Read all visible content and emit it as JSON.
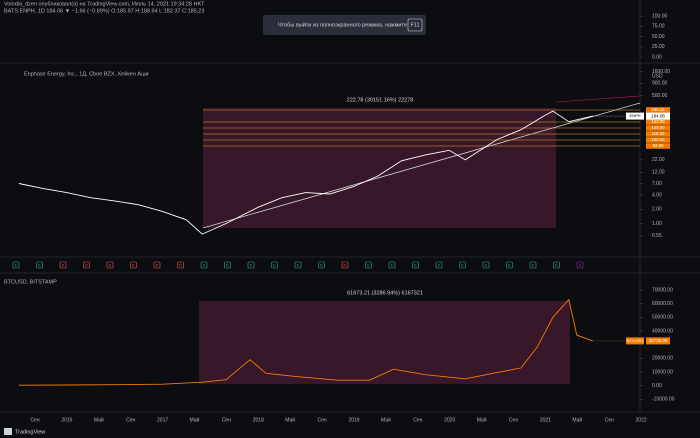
{
  "header": {
    "publisher": "Volodia_dzen опубликовал(а) на TradingView.com, Июль 14, 2021 19:34:28 HKT",
    "symbol_line": "BATS:ENPH, 1D  184.06  ▼ −1.66 (−0.89%)  O:185.97 H:188.94 L:182.37 C:185.23"
  },
  "toast": {
    "text": "Чтобы выйти из полноэкранного режима, нажмите",
    "key": "F11"
  },
  "top_pane": {
    "ylim": [
      -12,
      120
    ],
    "yticks": [
      {
        "value": 100,
        "label": "100.00"
      },
      {
        "value": 75,
        "label": "75.00"
      },
      {
        "value": 50,
        "label": "50.00"
      },
      {
        "value": 25,
        "label": "25.00"
      },
      {
        "value": 0,
        "label": "0.00"
      }
    ]
  },
  "main": {
    "title": "Enphase Energy, Inc., 1Д, Cboe BZX, Хейкен Аши",
    "unit": "USD",
    "log": true,
    "color": "#ffffff",
    "ylim": [
      0.45,
      1900
    ],
    "yticks": [
      {
        "value": 1600,
        "label": "1600.00"
      },
      {
        "value": 900,
        "label": "900.00"
      },
      {
        "value": 500,
        "label": "500.00"
      },
      {
        "value": 22,
        "label": "22.00"
      },
      {
        "value": 12,
        "label": "12.00"
      },
      {
        "value": 7,
        "label": "7.00"
      },
      {
        "value": 4,
        "label": "4.00"
      },
      {
        "value": 2,
        "label": "2.00"
      },
      {
        "value": 1,
        "label": "1.00"
      },
      {
        "value": 0.55,
        "label": "0.55"
      }
    ],
    "x": [
      "2015-07",
      "2015-10",
      "2016-01",
      "2016-04",
      "2016-07",
      "2016-10",
      "2017-01",
      "2017-04",
      "2017-06",
      "2017-09",
      "2018-01",
      "2018-04",
      "2018-07",
      "2018-10",
      "2019-01",
      "2019-04",
      "2019-07",
      "2019-10",
      "2020-01",
      "2020-03",
      "2020-07",
      "2020-10",
      "2021-01",
      "2021-02",
      "2021-04",
      "2021-07"
    ],
    "values": [
      7,
      5.5,
      4.5,
      3.5,
      3,
      2.5,
      1.8,
      1.2,
      0.6,
      1.0,
      2.2,
      3.5,
      4.5,
      4.2,
      6,
      10,
      21,
      28,
      35,
      22,
      59,
      95,
      190,
      235,
      140,
      184.06
    ],
    "symbol": "ENPH",
    "last": {
      "value": 184.06,
      "label": "184.06"
    },
    "measure": "222.78 (30151.16%) 22278",
    "levels": [
      "185.15",
      "163.00",
      "145.00",
      "119.00",
      "109.00",
      "92.00"
    ],
    "events": [
      {
        "label": "E",
        "color": "#26a69a"
      },
      {
        "label": "E",
        "color": "#26a69a"
      },
      {
        "label": "E",
        "color": "#ef5350"
      },
      {
        "label": "D",
        "color": "#ef5350"
      },
      {
        "label": "E",
        "color": "#ef5350"
      },
      {
        "label": "E",
        "color": "#ef5350"
      },
      {
        "label": "E",
        "color": "#ef5350"
      },
      {
        "label": "D",
        "color": "#ef5350"
      },
      {
        "label": "E",
        "color": "#26a69a"
      },
      {
        "label": "E",
        "color": "#26a69a"
      },
      {
        "label": "E",
        "color": "#26a69a"
      },
      {
        "label": "E",
        "color": "#26a69a"
      },
      {
        "label": "E",
        "color": "#26a69a"
      },
      {
        "label": "E",
        "color": "#26a69a"
      },
      {
        "label": "D",
        "color": "#ef5350"
      },
      {
        "label": "E",
        "color": "#26a69a"
      },
      {
        "label": "E",
        "color": "#26a69a"
      },
      {
        "label": "E",
        "color": "#26a69a"
      },
      {
        "label": "E",
        "color": "#26a69a"
      },
      {
        "label": "E",
        "color": "#26a69a"
      },
      {
        "label": "E",
        "color": "#26a69a"
      },
      {
        "label": "E",
        "color": "#26a69a"
      },
      {
        "label": "E",
        "color": "#26a69a"
      },
      {
        "label": "E",
        "color": "#26a69a"
      },
      {
        "label": "E",
        "color": "#9c27b0"
      }
    ]
  },
  "btc": {
    "title": "BTCUSD, BITSTAMP",
    "color": "#f57c00",
    "ylim": [
      -12000,
      81000
    ],
    "yticks": [
      {
        "value": 70000,
        "label": "70000.00"
      },
      {
        "value": 60000,
        "label": "60000.00"
      },
      {
        "value": 50000,
        "label": "50000.00"
      },
      {
        "value": 40000,
        "label": "40000.00"
      },
      {
        "value": 20000,
        "label": "20000.00"
      },
      {
        "value": 10000,
        "label": "10000.00"
      },
      {
        "value": 0,
        "label": "0.00"
      },
      {
        "value": -10000,
        "label": "-10000.00"
      }
    ],
    "x": [
      "2015-07",
      "2016-01",
      "2016-07",
      "2017-01",
      "2017-06",
      "2017-09",
      "2017-12",
      "2018-02",
      "2018-06",
      "2018-11",
      "2019-03",
      "2019-06",
      "2019-10",
      "2020-03",
      "2020-07",
      "2020-10",
      "2020-12",
      "2021-02",
      "2021-04",
      "2021-05",
      "2021-07"
    ],
    "values": [
      280,
      430,
      650,
      1000,
      2500,
      4300,
      19000,
      9000,
      6500,
      4000,
      4000,
      12000,
      8000,
      5000,
      9500,
      13000,
      28000,
      50000,
      63000,
      37000,
      32736
    ],
    "symbol": "BTCUSD",
    "last": {
      "value": 32736,
      "label": "32736.00"
    },
    "measure": "61673.21 (3286.94%) 6167321"
  },
  "xaxis": [
    "Сен",
    "2016",
    "Май",
    "Сен",
    "2017",
    "Май",
    "Сен",
    "2018",
    "Май",
    "Сен",
    "2019",
    "Май",
    "Сен",
    "2020",
    "Май",
    "Сен",
    "2021",
    "Май",
    "Сен",
    "2022"
  ],
  "footer": {
    "brand": "TradingView"
  }
}
